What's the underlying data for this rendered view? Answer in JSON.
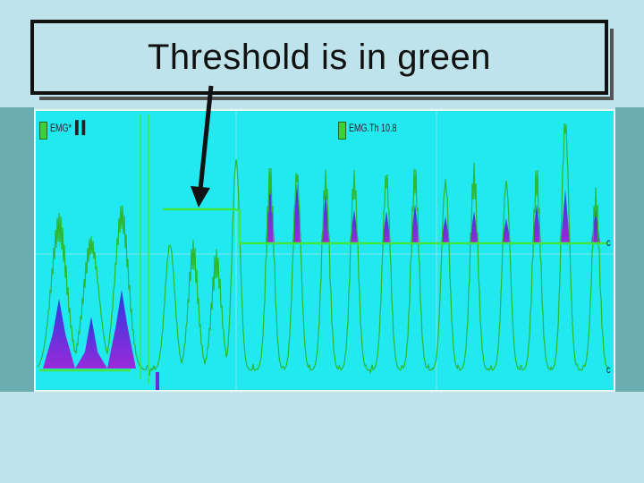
{
  "title": "Threshold is in green",
  "scope": {
    "channel1_label": "EMG*",
    "channel2_label": "EMG.Th 10.8",
    "right_marker_top": "c",
    "right_marker_bottom": "c"
  },
  "colors": {
    "background": "#bfe3ea",
    "scope_bg": "#22e8f0",
    "signal": "#2db82d",
    "threshold": "#3ee83e",
    "fill_top": "#2a3be0",
    "fill_bottom": "#9a2ad8"
  }
}
